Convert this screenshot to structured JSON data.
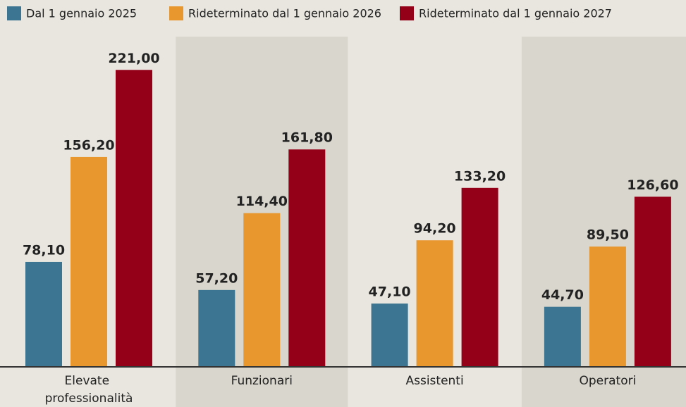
{
  "chart_data": {
    "type": "bar",
    "categories": [
      "Elevate professionalità",
      "Funzionari",
      "Assistenti",
      "Operatori"
    ],
    "series": [
      {
        "name": "Dal 1 gennaio 2025",
        "color": "#3c7591",
        "values": [
          78.1,
          57.2,
          47.1,
          44.7
        ],
        "value_labels": [
          "78,10",
          "57,20",
          "47,10",
          "44,70"
        ]
      },
      {
        "name": "Rideterminato dal 1 gennaio 2026",
        "color": "#e8962e",
        "values": [
          156.2,
          114.4,
          94.2,
          89.5
        ],
        "value_labels": [
          "156,20",
          "114,40",
          "94,20",
          "89,50"
        ]
      },
      {
        "name": "Rideterminato dal 1 gennaio 2027",
        "color": "#950019",
        "values": [
          221.0,
          161.8,
          133.2,
          126.6
        ],
        "value_labels": [
          "221,00",
          "161,80",
          "133,20",
          "126,60"
        ]
      }
    ],
    "ylim": [
      0,
      240
    ]
  }
}
